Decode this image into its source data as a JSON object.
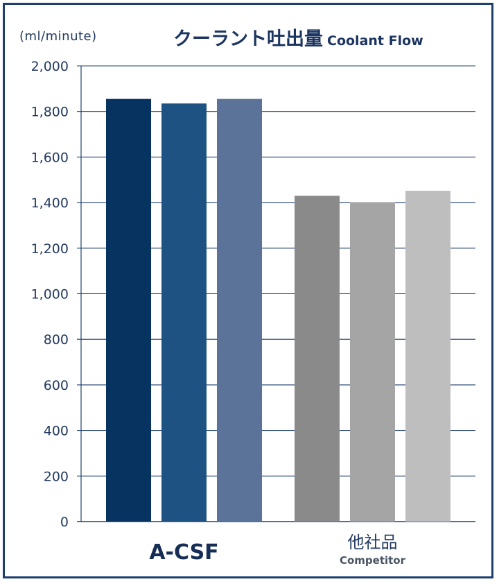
{
  "chart_data": {
    "type": "bar",
    "title": "クーラント吐出量",
    "title_en": "Coolant Flow",
    "unit_label": "(ml/minute)",
    "ylim": [
      0,
      2000
    ],
    "yticks": [
      "0",
      "200",
      "400",
      "600",
      "800",
      "1,000",
      "1,200",
      "1,400",
      "1,600",
      "1,800",
      "2,000"
    ],
    "ytick_values": [
      0,
      200,
      400,
      600,
      800,
      1000,
      1200,
      1400,
      1600,
      1800,
      2000
    ],
    "grid": true,
    "groups": [
      {
        "label": "A-CSF",
        "sublabel": "",
        "values": [
          1855,
          1835,
          1855
        ],
        "colors": [
          "#06335f",
          "#1d5283",
          "#5b7398"
        ]
      },
      {
        "label": "他社品",
        "sublabel": "Competitor",
        "values": [
          1430,
          1402,
          1452
        ],
        "colors": [
          "#8a8a8a",
          "#a5a5a5",
          "#bebebe"
        ]
      }
    ],
    "colors": {
      "frame": "#1d3f6e",
      "grid": "#1d3f6e",
      "text": "#233a60"
    }
  }
}
